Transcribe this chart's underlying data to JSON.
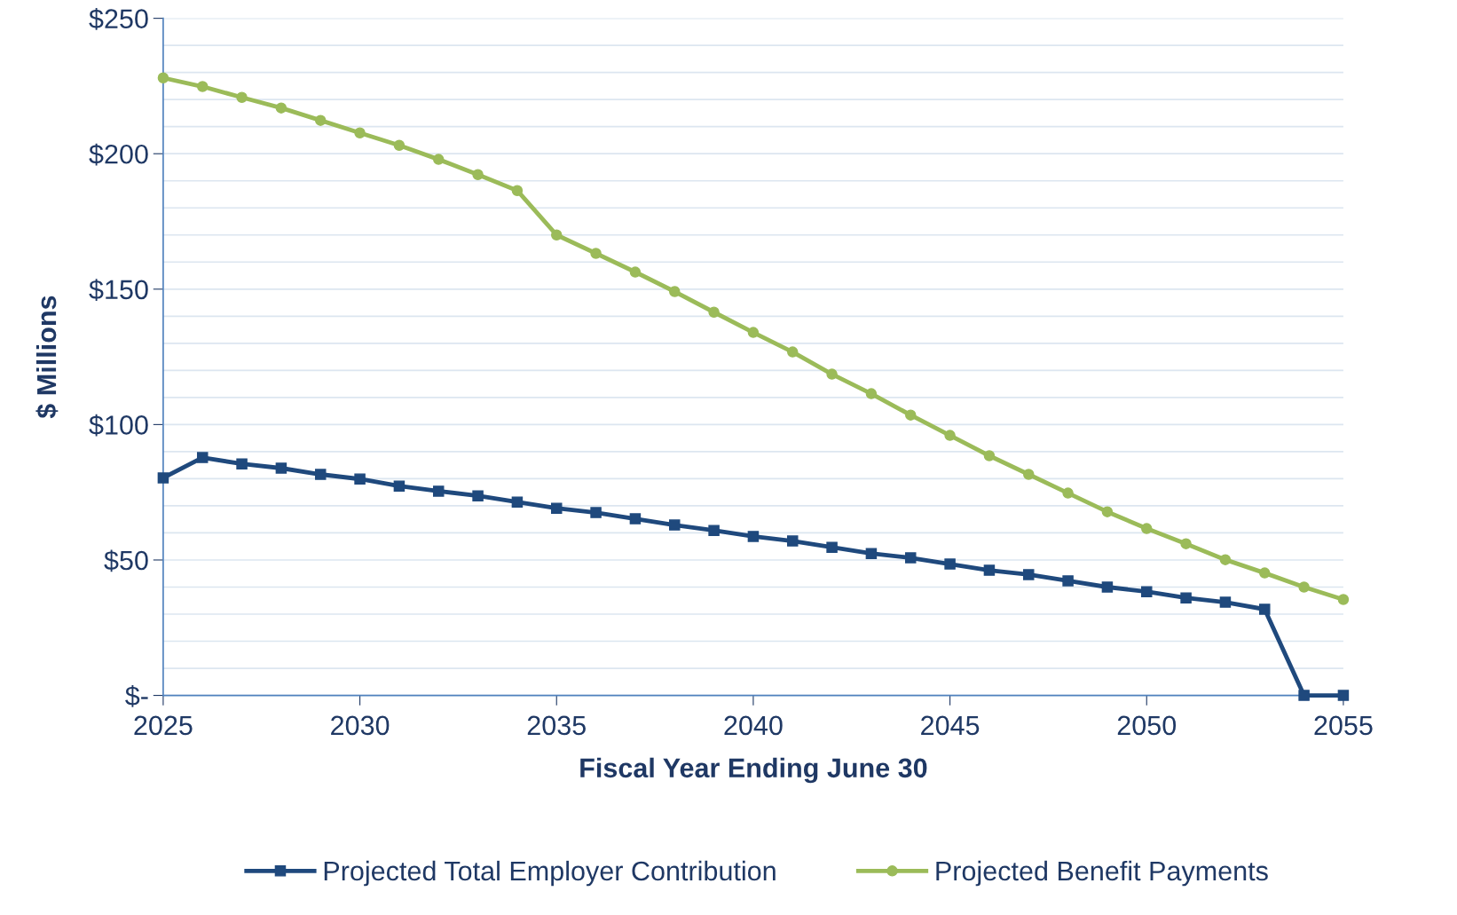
{
  "chart_data": {
    "type": "line",
    "xlabel": "Fiscal Year Ending June 30",
    "ylabel": "$ Millions",
    "x": [
      2025,
      2026,
      2027,
      2028,
      2029,
      2030,
      2031,
      2032,
      2033,
      2034,
      2035,
      2036,
      2037,
      2038,
      2039,
      2040,
      2041,
      2042,
      2043,
      2044,
      2045,
      2046,
      2047,
      2048,
      2049,
      2050,
      2051,
      2052,
      2053,
      2054,
      2055
    ],
    "series": [
      {
        "name": "Projected Total Employer Contribution",
        "color": "#1f497d",
        "marker": "square",
        "values": [
          80.3,
          87.8,
          85.5,
          83.9,
          81.6,
          79.9,
          77.3,
          75.4,
          73.7,
          71.4,
          69.1,
          67.5,
          65.2,
          62.9,
          60.9,
          58.7,
          57.0,
          54.7,
          52.4,
          50.8,
          48.5,
          46.2,
          44.6,
          42.3,
          40.0,
          38.3,
          36.0,
          34.4,
          31.8,
          0,
          0
        ]
      },
      {
        "name": "Projected Benefit Payments",
        "color": "#9bbb59",
        "marker": "circle",
        "values": [
          228,
          224.8,
          220.8,
          216.9,
          212.3,
          207.7,
          203.1,
          197.9,
          192.3,
          186.4,
          170,
          163.2,
          156.3,
          149.1,
          141.5,
          134,
          126.8,
          118.6,
          111.4,
          103.5,
          96,
          88.5,
          81.6,
          74.7,
          67.8,
          61.6,
          56,
          50.1,
          45.2,
          40,
          35.4
        ]
      }
    ],
    "xlim": [
      2025,
      2055
    ],
    "xticks": [
      2025,
      2030,
      2035,
      2040,
      2045,
      2050,
      2055
    ],
    "ylim": [
      0,
      250
    ],
    "yticks": [
      {
        "value": 0,
        "label": "$-"
      },
      {
        "value": 10,
        "label": null
      },
      {
        "value": 20,
        "label": null
      },
      {
        "value": 30,
        "label": null
      },
      {
        "value": 40,
        "label": null
      },
      {
        "value": 50,
        "label": "$50"
      },
      {
        "value": 60,
        "label": null
      },
      {
        "value": 70,
        "label": null
      },
      {
        "value": 80,
        "label": null
      },
      {
        "value": 90,
        "label": null
      },
      {
        "value": 100,
        "label": "$100"
      },
      {
        "value": 110,
        "label": null
      },
      {
        "value": 120,
        "label": null
      },
      {
        "value": 130,
        "label": null
      },
      {
        "value": 140,
        "label": null
      },
      {
        "value": 150,
        "label": "$150"
      },
      {
        "value": 160,
        "label": null
      },
      {
        "value": 170,
        "label": null
      },
      {
        "value": 180,
        "label": null
      },
      {
        "value": 190,
        "label": null
      },
      {
        "value": 200,
        "label": "$200"
      },
      {
        "value": 210,
        "label": null
      },
      {
        "value": 220,
        "label": null
      },
      {
        "value": 230,
        "label": null
      },
      {
        "value": 240,
        "label": null
      },
      {
        "value": 250,
        "label": "$250"
      }
    ],
    "grid": "y",
    "legend": "bottom",
    "line_style": "solid"
  }
}
